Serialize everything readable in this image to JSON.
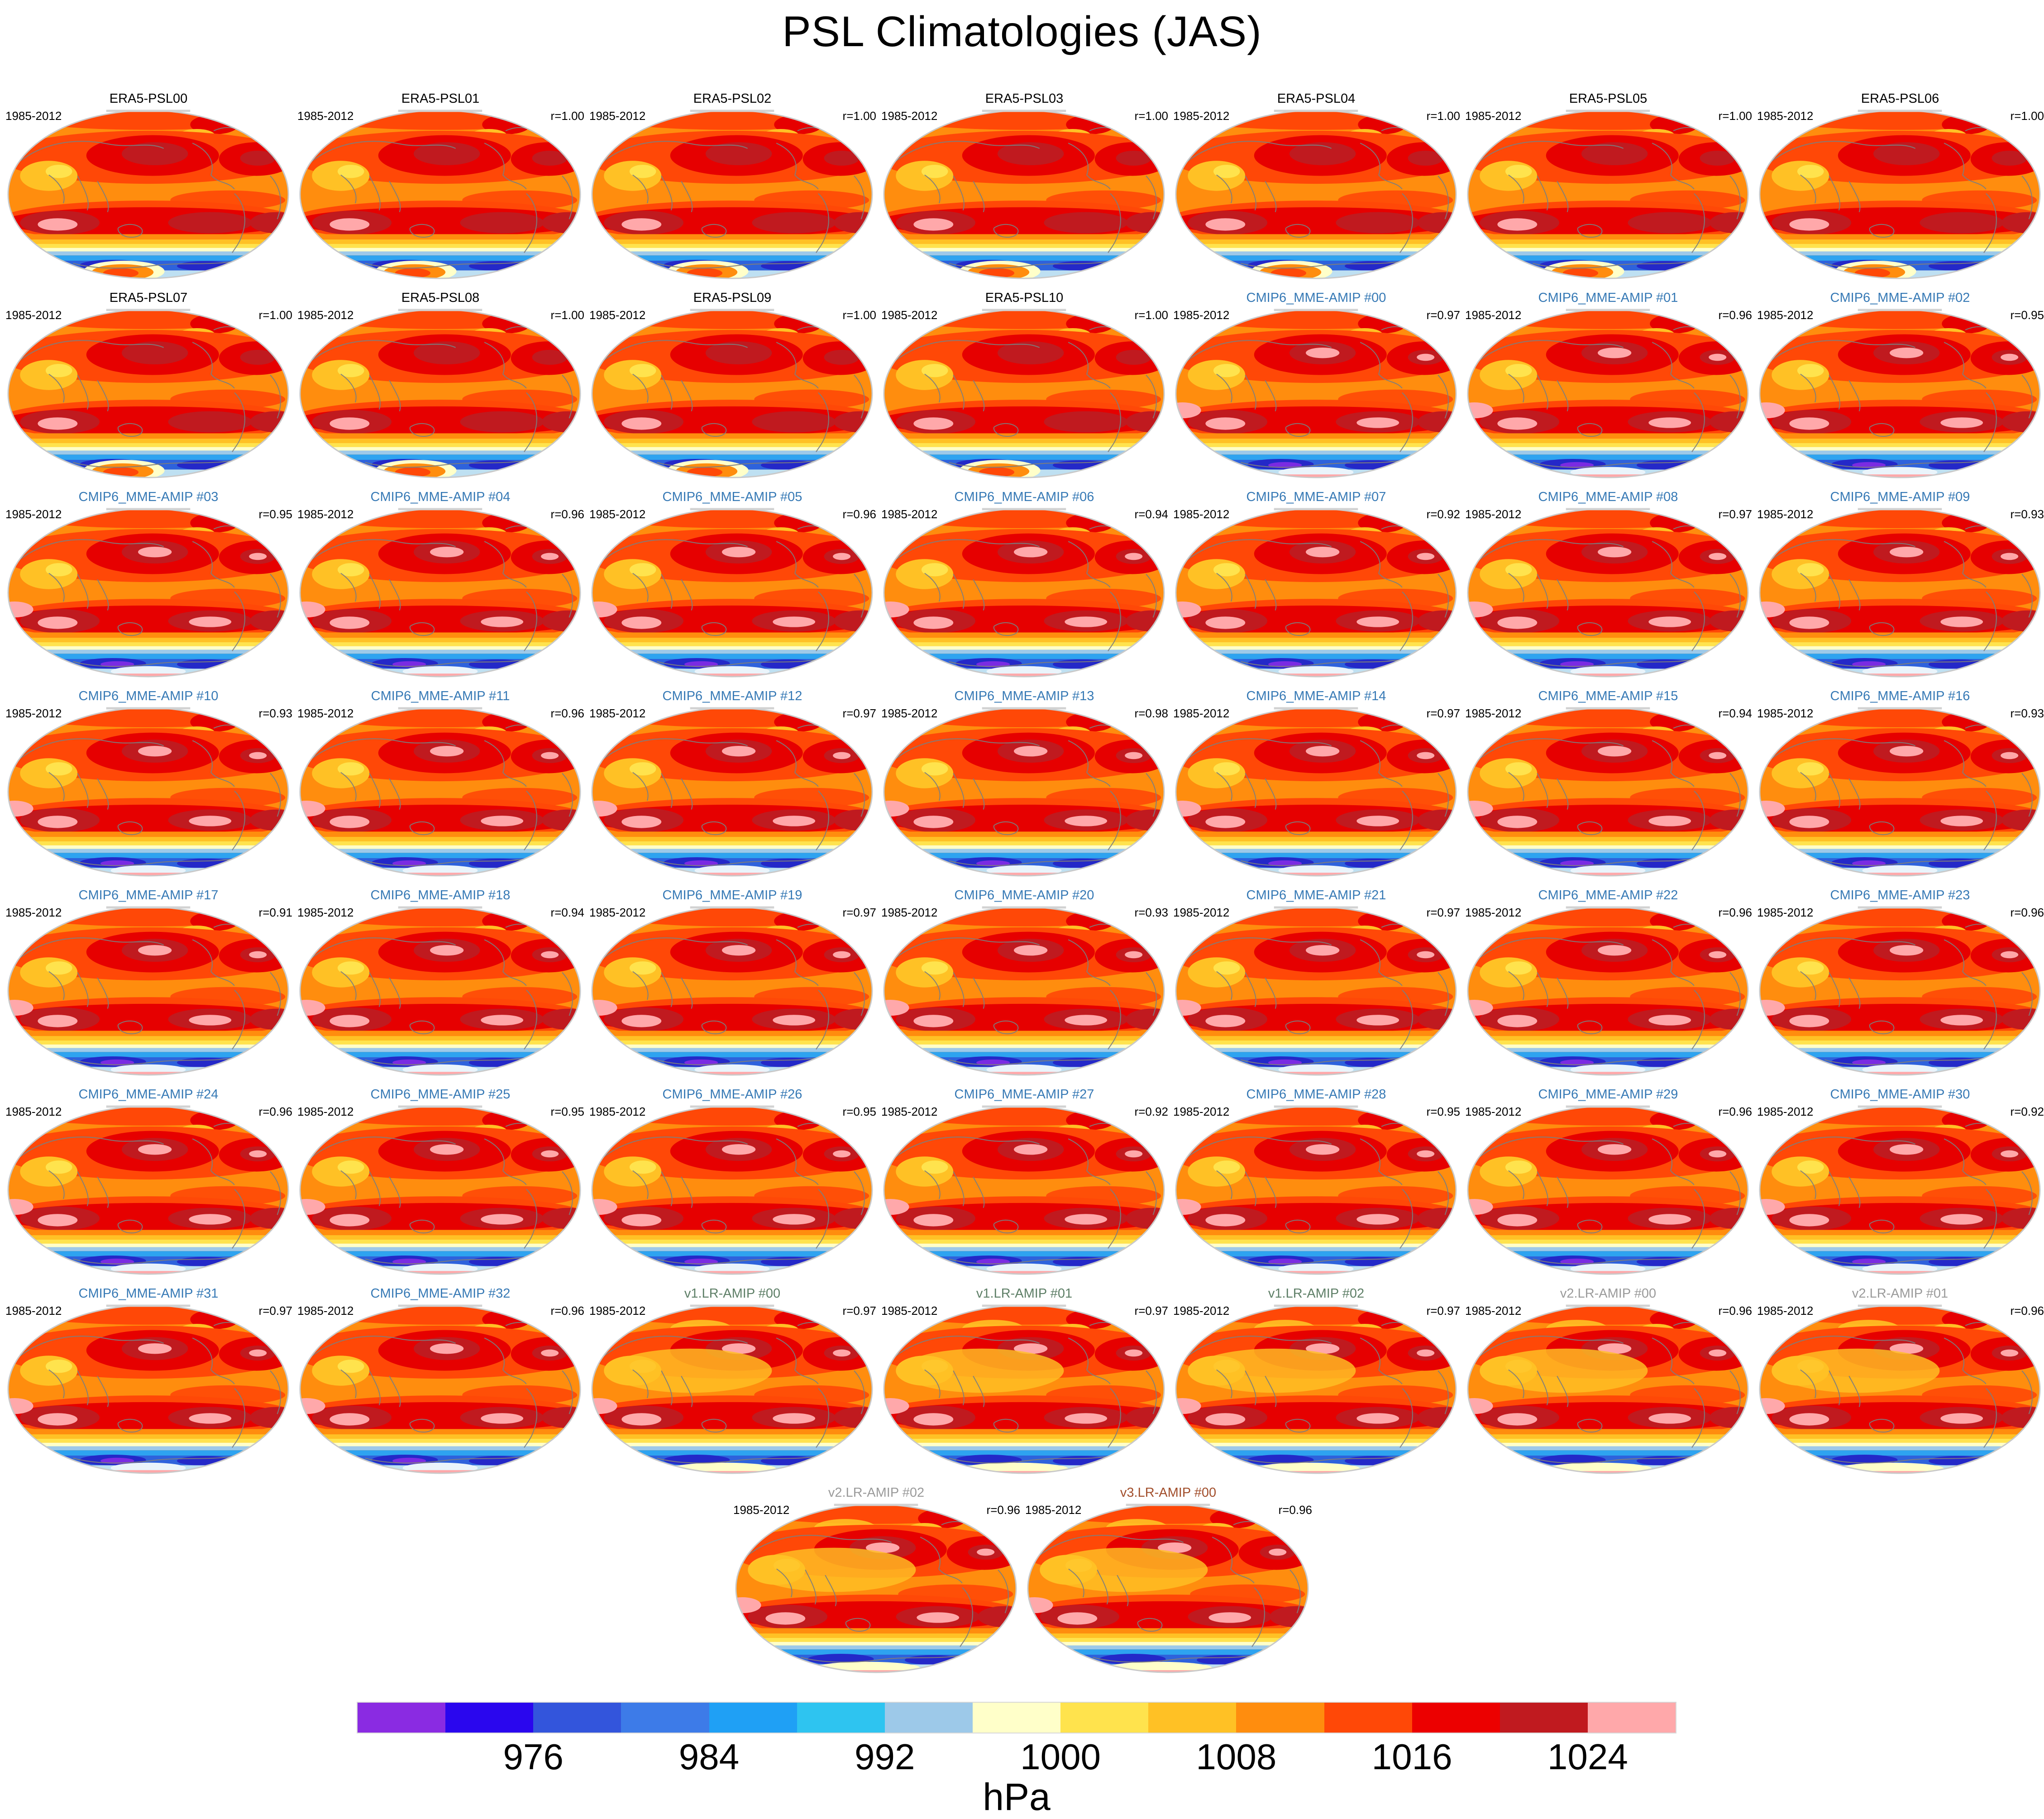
{
  "title": "PSL Climatologies (JAS)",
  "period": "1985-2012",
  "label_colors": {
    "era5": "#000000",
    "cmip6": "#3679B5",
    "v1lr": "#5D7E66",
    "v2lr": "#9A9A9A",
    "v3lr": "#A14D2A"
  },
  "chart_data": {
    "type": "heatmap",
    "title": "PSL Climatologies (JAS)",
    "subtitle_period": "1985-2012",
    "legend_position": "bottom",
    "rows": [
      [
        {
          "name": "ERA5-PSL00",
          "group": "era5",
          "r": null
        },
        {
          "name": "ERA5-PSL01",
          "group": "era5",
          "r": "r=1.00"
        },
        {
          "name": "ERA5-PSL02",
          "group": "era5",
          "r": "r=1.00"
        },
        {
          "name": "ERA5-PSL03",
          "group": "era5",
          "r": "r=1.00"
        },
        {
          "name": "ERA5-PSL04",
          "group": "era5",
          "r": "r=1.00"
        },
        {
          "name": "ERA5-PSL05",
          "group": "era5",
          "r": "r=1.00"
        },
        {
          "name": "ERA5-PSL06",
          "group": "era5",
          "r": "r=1.00"
        }
      ],
      [
        {
          "name": "ERA5-PSL07",
          "group": "era5",
          "r": "r=1.00"
        },
        {
          "name": "ERA5-PSL08",
          "group": "era5",
          "r": "r=1.00"
        },
        {
          "name": "ERA5-PSL09",
          "group": "era5",
          "r": "r=1.00"
        },
        {
          "name": "ERA5-PSL10",
          "group": "era5",
          "r": "r=1.00"
        },
        {
          "name": "CMIP6_MME-AMIP #00",
          "group": "cmip6",
          "r": "r=0.97"
        },
        {
          "name": "CMIP6_MME-AMIP #01",
          "group": "cmip6",
          "r": "r=0.96"
        },
        {
          "name": "CMIP6_MME-AMIP #02",
          "group": "cmip6",
          "r": "r=0.95"
        }
      ],
      [
        {
          "name": "CMIP6_MME-AMIP #03",
          "group": "cmip6",
          "r": "r=0.95"
        },
        {
          "name": "CMIP6_MME-AMIP #04",
          "group": "cmip6",
          "r": "r=0.96"
        },
        {
          "name": "CMIP6_MME-AMIP #05",
          "group": "cmip6",
          "r": "r=0.96"
        },
        {
          "name": "CMIP6_MME-AMIP #06",
          "group": "cmip6",
          "r": "r=0.94"
        },
        {
          "name": "CMIP6_MME-AMIP #07",
          "group": "cmip6",
          "r": "r=0.92"
        },
        {
          "name": "CMIP6_MME-AMIP #08",
          "group": "cmip6",
          "r": "r=0.97"
        },
        {
          "name": "CMIP6_MME-AMIP #09",
          "group": "cmip6",
          "r": "r=0.93"
        }
      ],
      [
        {
          "name": "CMIP6_MME-AMIP #10",
          "group": "cmip6",
          "r": "r=0.93"
        },
        {
          "name": "CMIP6_MME-AMIP #11",
          "group": "cmip6",
          "r": "r=0.96"
        },
        {
          "name": "CMIP6_MME-AMIP #12",
          "group": "cmip6",
          "r": "r=0.97"
        },
        {
          "name": "CMIP6_MME-AMIP #13",
          "group": "cmip6",
          "r": "r=0.98"
        },
        {
          "name": "CMIP6_MME-AMIP #14",
          "group": "cmip6",
          "r": "r=0.97"
        },
        {
          "name": "CMIP6_MME-AMIP #15",
          "group": "cmip6",
          "r": "r=0.94"
        },
        {
          "name": "CMIP6_MME-AMIP #16",
          "group": "cmip6",
          "r": "r=0.93"
        }
      ],
      [
        {
          "name": "CMIP6_MME-AMIP #17",
          "group": "cmip6",
          "r": "r=0.91"
        },
        {
          "name": "CMIP6_MME-AMIP #18",
          "group": "cmip6",
          "r": "r=0.94"
        },
        {
          "name": "CMIP6_MME-AMIP #19",
          "group": "cmip6",
          "r": "r=0.97"
        },
        {
          "name": "CMIP6_MME-AMIP #20",
          "group": "cmip6",
          "r": "r=0.93"
        },
        {
          "name": "CMIP6_MME-AMIP #21",
          "group": "cmip6",
          "r": "r=0.97"
        },
        {
          "name": "CMIP6_MME-AMIP #22",
          "group": "cmip6",
          "r": "r=0.96"
        },
        {
          "name": "CMIP6_MME-AMIP #23",
          "group": "cmip6",
          "r": "r=0.96"
        }
      ],
      [
        {
          "name": "CMIP6_MME-AMIP #24",
          "group": "cmip6",
          "r": "r=0.96"
        },
        {
          "name": "CMIP6_MME-AMIP #25",
          "group": "cmip6",
          "r": "r=0.95"
        },
        {
          "name": "CMIP6_MME-AMIP #26",
          "group": "cmip6",
          "r": "r=0.95"
        },
        {
          "name": "CMIP6_MME-AMIP #27",
          "group": "cmip6",
          "r": "r=0.92"
        },
        {
          "name": "CMIP6_MME-AMIP #28",
          "group": "cmip6",
          "r": "r=0.95"
        },
        {
          "name": "CMIP6_MME-AMIP #29",
          "group": "cmip6",
          "r": "r=0.96"
        },
        {
          "name": "CMIP6_MME-AMIP #30",
          "group": "cmip6",
          "r": "r=0.92"
        }
      ],
      [
        {
          "name": "CMIP6_MME-AMIP #31",
          "group": "cmip6",
          "r": "r=0.97"
        },
        {
          "name": "CMIP6_MME-AMIP #32",
          "group": "cmip6",
          "r": "r=0.96"
        },
        {
          "name": "v1.LR-AMIP #00",
          "group": "v1lr",
          "r": "r=0.97"
        },
        {
          "name": "v1.LR-AMIP #01",
          "group": "v1lr",
          "r": "r=0.97"
        },
        {
          "name": "v1.LR-AMIP #02",
          "group": "v1lr",
          "r": "r=0.97"
        },
        {
          "name": "v2.LR-AMIP #00",
          "group": "v2lr",
          "r": "r=0.96"
        },
        {
          "name": "v2.LR-AMIP #01",
          "group": "v2lr",
          "r": "r=0.96"
        }
      ],
      [
        {
          "name": "v2.LR-AMIP #02",
          "group": "v2lr",
          "r": "r=0.96"
        },
        {
          "name": "v3.LR-AMIP #00",
          "group": "v3lr",
          "r": "r=0.96"
        }
      ]
    ],
    "colorbar": {
      "units": "hPa",
      "tick_labels": [
        "976",
        "984",
        "992",
        "1000",
        "1008",
        "1016",
        "1024"
      ],
      "segment_colors": [
        "#8A2BE2",
        "#2A06EE",
        "#3355DC",
        "#3D7BE8",
        "#1FA0F5",
        "#2EC4F0",
        "#9DC9E9",
        "#FFFFC9",
        "#FFE34D",
        "#FFC125",
        "#FF8D0E",
        "#FF4807",
        "#EC0000",
        "#C01A1F",
        "#FFA8AA"
      ]
    }
  }
}
